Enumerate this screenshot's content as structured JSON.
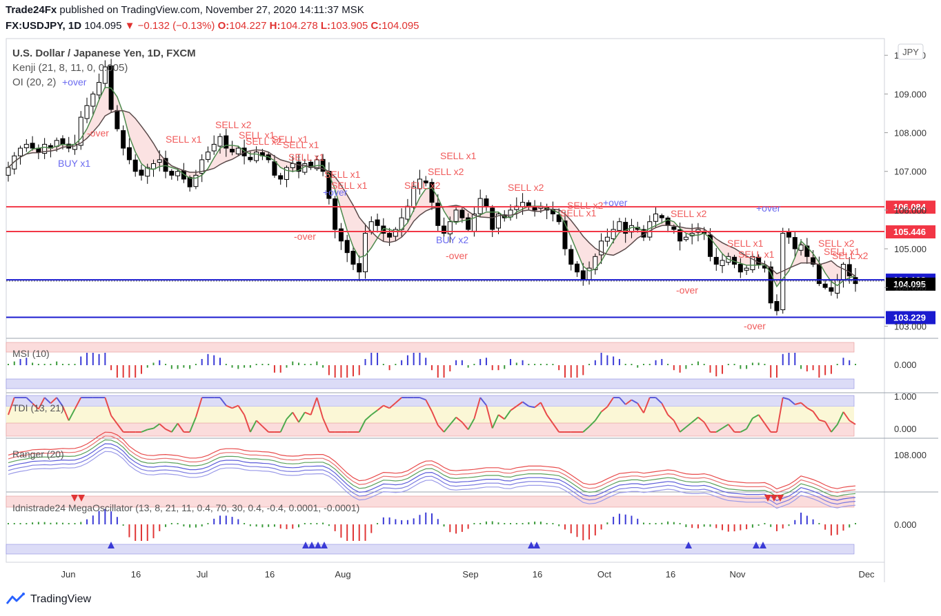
{
  "header": {
    "publisher": "Trade24Fx",
    "published_text": "published on TradingView.com, November 27, 2020 14:11:37 MSK",
    "symbol": "FX:USDJPY, 1D",
    "last": "104.095",
    "change": "−0.132 (−0.13%)",
    "open_label": "O:",
    "open": "104.227",
    "high_label": "H:",
    "high": "104.278",
    "low_label": "L:",
    "low": "103.905",
    "close_label": "C:",
    "close": "104.095"
  },
  "legend": {
    "title": "U.S. Dollar / Japanese Yen, 1D, FXCM",
    "kenji": "Kenji (21, 8, 11, 0, 0.005)",
    "oi": "OI (20, 2)"
  },
  "currency_badge": "JPY",
  "panes": {
    "msi": "MSI (10)",
    "tdi": "TDI (13, 21)",
    "ranger": "Ranger (20)",
    "mega": "Idnistrade24 MegaOscillator (13, 8, 21, 11, 0.4, 70, 30, 0.4, -0.4, 0.0001, -0.0001)"
  },
  "footer": {
    "brand": "TradingView"
  },
  "chart_data": {
    "type": "candlestick",
    "title": "U.S. Dollar / Japanese Yen, 1D, FXCM",
    "x_ticks": [
      "Jun",
      "16",
      "Jul",
      "16",
      "Aug",
      "Sep",
      "16",
      "Oct",
      "16",
      "Nov",
      "Dec"
    ],
    "y_ticks": [
      "110.000",
      "109.000",
      "108.000",
      "107.000",
      "106.000",
      "105.000",
      "104.000",
      "103.000"
    ],
    "ylim": [
      102.9,
      110.2
    ],
    "levels": [
      {
        "value": 106.084,
        "label": "106.084",
        "color": "#f23645"
      },
      {
        "value": 105.446,
        "label": "105.446",
        "color": "#f23645"
      },
      {
        "value": 104.198,
        "label": "104.198",
        "color": "#1a1acf"
      },
      {
        "value": 104.095,
        "label": "104.095",
        "color": "#000000"
      },
      {
        "value": 103.229,
        "label": "103.229",
        "color": "#1a1acf"
      }
    ],
    "closes": [
      107.1,
      107.4,
      107.6,
      107.7,
      107.6,
      107.5,
      107.7,
      107.6,
      107.8,
      107.7,
      107.6,
      107.7,
      108.4,
      108.7,
      109.0,
      109.3,
      109.7,
      108.6,
      108.1,
      107.6,
      107.3,
      107.0,
      106.9,
      107.1,
      107.2,
      107.3,
      107.0,
      106.9,
      107.0,
      106.8,
      106.6,
      106.9,
      107.3,
      107.5,
      107.7,
      107.9,
      107.6,
      107.5,
      107.6,
      107.4,
      107.3,
      107.5,
      107.4,
      107.3,
      106.9,
      106.8,
      107.1,
      107.2,
      107.0,
      107.2,
      107.1,
      107.3,
      107.0,
      106.3,
      105.5,
      105.2,
      104.9,
      104.6,
      104.4,
      105.4,
      105.7,
      105.6,
      105.4,
      105.3,
      105.5,
      105.8,
      106.1,
      106.6,
      106.8,
      106.7,
      106.2,
      105.6,
      105.4,
      105.7,
      106.0,
      105.8,
      105.5,
      105.9,
      106.3,
      106.1,
      105.5,
      105.9,
      105.8,
      106.0,
      106.1,
      106.2,
      106.1,
      106.0,
      106.1,
      106.0,
      105.9,
      105.7,
      105.0,
      104.6,
      104.4,
      104.2,
      104.5,
      104.8,
      105.2,
      105.3,
      105.5,
      105.7,
      105.4,
      105.6,
      105.5,
      105.3,
      105.7,
      105.9,
      105.8,
      105.6,
      105.5,
      105.2,
      105.3,
      105.4,
      105.5,
      105.4,
      104.8,
      104.6,
      104.7,
      104.8,
      104.6,
      104.4,
      104.5,
      104.8,
      104.6,
      104.5,
      103.6,
      103.4,
      105.4,
      105.3,
      105.0,
      105.1,
      104.8,
      104.6,
      104.1,
      104.0,
      103.9,
      104.2,
      104.6,
      104.3,
      104.1
    ],
    "range_bands": {
      "msi": [
        -1,
        1
      ],
      "tdi": [
        0,
        1
      ]
    },
    "signals": {
      "sell": [
        "SELL x2",
        "SELL x1",
        "SELL x1",
        "SELL x2",
        "SELL x1",
        "SELL x1",
        "SELL x1",
        "SELL x1",
        "SELL x1",
        "SELL x2",
        "SELL x2",
        "SELL x1",
        "SELL x2",
        "SELL x2",
        "SELL x1",
        "SELL x2",
        "SELL x1",
        "SELL x1",
        "SELL x2",
        "SELL x1",
        "SELL x2"
      ],
      "buy": [
        "BUY x1",
        "BUY x2"
      ],
      "over": [
        "+over",
        "-over",
        "+over",
        "-over",
        "+over",
        "-over",
        "+over",
        "-over",
        "-over"
      ]
    }
  },
  "axis_labels": {
    "msi_zero": "0.000",
    "tdi_top": "1.000",
    "tdi_zero": "0.000",
    "ranger": "108.000",
    "mega_zero": "0.000"
  },
  "colors": {
    "up": "#ffffff",
    "down": "#000000",
    "red_level": "#f23645",
    "blue_level": "#1a1acf",
    "sell_text": "#f05a5a",
    "buy_text": "#6a6af0"
  }
}
